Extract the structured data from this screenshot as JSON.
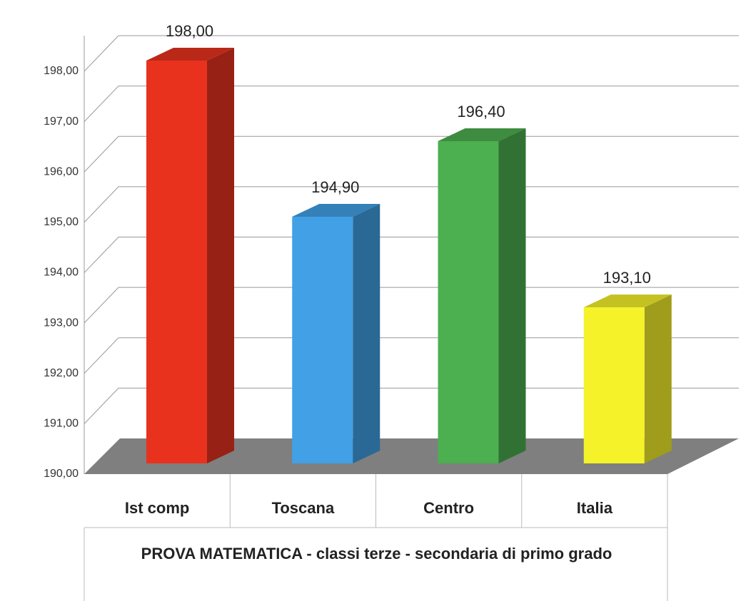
{
  "chart_data": {
    "type": "bar3d",
    "xlabel": "PROVA MATEMATICA - classi terze - secondaria di primo grado",
    "categories": [
      "Ist comp",
      "Toscana",
      "Centro",
      "Italia"
    ],
    "values": [
      198,
      194.9,
      196.4,
      193.1
    ],
    "value_labels": [
      "198,00",
      "194,90",
      "196,40",
      "193,10"
    ],
    "colors": [
      "#e8321e",
      "#41a0e6",
      "#4caf50",
      "#f5f22a"
    ],
    "ylim": [
      190,
      198
    ],
    "yticks": [
      {
        "value": 190,
        "label": "190,00"
      },
      {
        "value": 191,
        "label": "191,00"
      },
      {
        "value": 192,
        "label": "192,00"
      },
      {
        "value": 193,
        "label": "193,00"
      },
      {
        "value": 194,
        "label": "194,00"
      },
      {
        "value": 195,
        "label": "195,00"
      },
      {
        "value": 196,
        "label": "196,00"
      },
      {
        "value": 197,
        "label": "197,00"
      },
      {
        "value": 198,
        "label": "198,00"
      }
    ],
    "grid": true
  }
}
